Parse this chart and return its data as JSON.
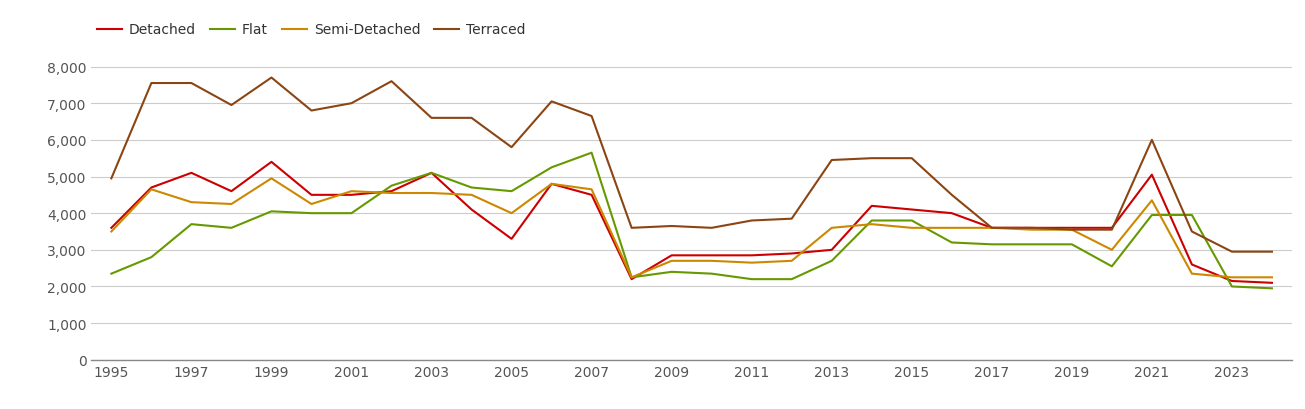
{
  "years": [
    1995,
    1996,
    1997,
    1998,
    1999,
    2000,
    2001,
    2002,
    2003,
    2004,
    2005,
    2006,
    2007,
    2008,
    2009,
    2010,
    2011,
    2012,
    2013,
    2014,
    2015,
    2016,
    2017,
    2018,
    2019,
    2020,
    2021,
    2022,
    2023,
    2024
  ],
  "detached": [
    3600,
    4700,
    5100,
    4600,
    5400,
    4500,
    4500,
    4600,
    5100,
    4100,
    3300,
    4800,
    4500,
    2200,
    2850,
    2850,
    2850,
    2900,
    3000,
    4200,
    4100,
    4000,
    3600,
    3600,
    3600,
    3600,
    5050,
    2600,
    2150,
    2100
  ],
  "flat": [
    2350,
    2800,
    3700,
    3600,
    4050,
    4000,
    4000,
    4750,
    5100,
    4700,
    4600,
    5250,
    5650,
    2250,
    2400,
    2350,
    2200,
    2200,
    2700,
    3800,
    3800,
    3200,
    3150,
    3150,
    3150,
    2550,
    3950,
    3950,
    2000,
    1950
  ],
  "semi_detached": [
    3500,
    4650,
    4300,
    4250,
    4950,
    4250,
    4600,
    4550,
    4550,
    4500,
    4000,
    4800,
    4650,
    2250,
    2700,
    2700,
    2650,
    2700,
    3600,
    3700,
    3600,
    3600,
    3600,
    3550,
    3550,
    3000,
    4350,
    2350,
    2250,
    2250
  ],
  "terraced": [
    4950,
    7550,
    7550,
    6950,
    7700,
    6800,
    7000,
    7600,
    6600,
    6600,
    5800,
    7050,
    6650,
    3600,
    3650,
    3600,
    3800,
    3850,
    5450,
    5500,
    5500,
    4500,
    3600,
    3600,
    3550,
    3550,
    6000,
    3500,
    2950,
    2950
  ],
  "colors": {
    "detached": "#cc0000",
    "flat": "#669900",
    "semi_detached": "#cc8800",
    "terraced": "#8B4513"
  },
  "ylim": [
    0,
    8500
  ],
  "yticks": [
    0,
    1000,
    2000,
    3000,
    4000,
    5000,
    6000,
    7000,
    8000
  ],
  "ytick_labels": [
    "0",
    "1,000",
    "2,000",
    "3,000",
    "4,000",
    "5,000",
    "6,000",
    "7,000",
    "8,000"
  ],
  "xtick_years": [
    1995,
    1997,
    1999,
    2001,
    2003,
    2005,
    2007,
    2009,
    2011,
    2013,
    2015,
    2017,
    2019,
    2021,
    2023
  ],
  "background_color": "#ffffff",
  "grid_color": "#cccccc",
  "line_width": 1.5,
  "xlim": [
    1994.5,
    2024.5
  ]
}
